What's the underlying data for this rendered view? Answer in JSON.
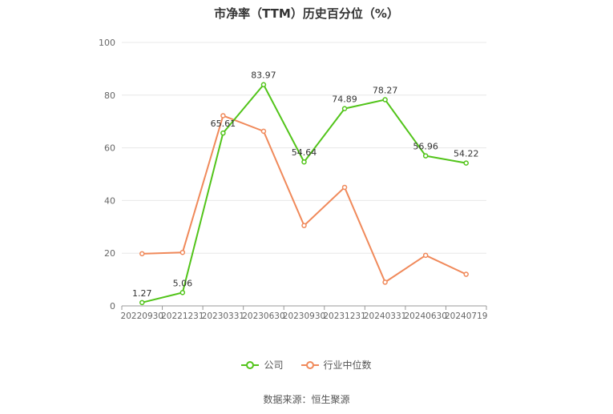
{
  "chart_data": {
    "type": "line",
    "title": "市净率（TTM）历史百分位（%）",
    "categories": [
      "20220930",
      "20221231",
      "20230331",
      "20230630",
      "20230930",
      "20231231",
      "20240331",
      "20240630",
      "20240719"
    ],
    "series": [
      {
        "name": "公司",
        "color": "#52c41a",
        "values": [
          1.27,
          5.06,
          65.61,
          83.97,
          54.64,
          74.89,
          78.27,
          56.96,
          54.22
        ],
        "show_labels": true
      },
      {
        "name": "行业中位数",
        "color": "#f0895a",
        "values": [
          19.8,
          20.3,
          72.2,
          66.3,
          30.5,
          45.0,
          9.0,
          19.2,
          12.0
        ],
        "show_labels": false
      }
    ],
    "ylim": [
      0,
      100
    ],
    "yticks": [
      0,
      20,
      40,
      60,
      80,
      100
    ],
    "grid": true,
    "legend_position": "bottom"
  },
  "source_text": "数据来源：恒生聚源"
}
